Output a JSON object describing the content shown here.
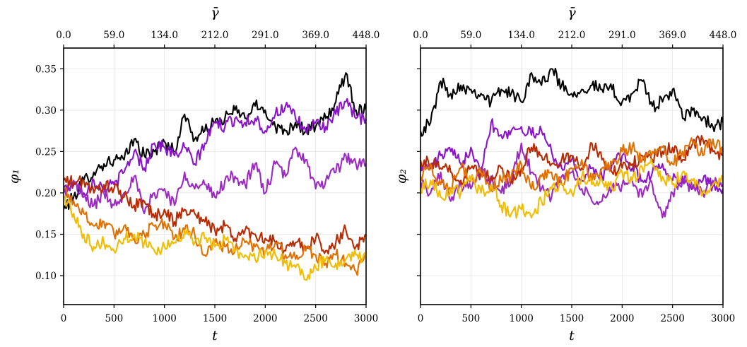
{
  "chart_data": [
    {
      "type": "line",
      "xlabel": "t",
      "ylabel": "φ₁",
      "top_xlabel": "γ̄",
      "xlim": [
        0,
        3000
      ],
      "ylim": [
        0.065,
        0.375
      ],
      "xticks": [
        0,
        500,
        1000,
        1500,
        2000,
        2500,
        3000
      ],
      "xtick_labels": [
        "0",
        "500",
        "1000",
        "1500",
        "2000",
        "2500",
        "3000"
      ],
      "yticks": [
        0.1,
        0.15,
        0.2,
        0.25,
        0.3,
        0.35
      ],
      "ytick_labels": [
        "0.10",
        "0.15",
        "0.20",
        "0.25",
        "0.30",
        "0.35"
      ],
      "top_xticks": [
        0,
        500,
        1000,
        1500,
        2000,
        2500,
        3000
      ],
      "top_xtick_labels": [
        "0.0",
        "59.0",
        "134.0",
        "212.0",
        "291.0",
        "369.0",
        "448.0"
      ],
      "grid": true,
      "x": [
        0,
        100,
        200,
        300,
        400,
        500,
        600,
        700,
        800,
        900,
        1000,
        1100,
        1200,
        1300,
        1400,
        1500,
        1600,
        1700,
        1800,
        1900,
        2000,
        2100,
        2200,
        2300,
        2400,
        2500,
        2600,
        2700,
        2800,
        2900,
        3000
      ],
      "series": [
        {
          "color": "#000000",
          "values": [
            0.18,
            0.195,
            0.215,
            0.225,
            0.235,
            0.24,
            0.24,
            0.265,
            0.245,
            0.25,
            0.262,
            0.25,
            0.295,
            0.265,
            0.275,
            0.285,
            0.29,
            0.3,
            0.29,
            0.305,
            0.3,
            0.28,
            0.275,
            0.285,
            0.275,
            0.28,
            0.29,
            0.31,
            0.345,
            0.3,
            0.3
          ]
        },
        {
          "color": "#8a14c8",
          "values": [
            0.205,
            0.21,
            0.2,
            0.215,
            0.205,
            0.21,
            0.225,
            0.25,
            0.23,
            0.26,
            0.255,
            0.245,
            0.255,
            0.235,
            0.26,
            0.285,
            0.28,
            0.29,
            0.285,
            0.29,
            0.275,
            0.295,
            0.305,
            0.29,
            0.275,
            0.285,
            0.28,
            0.295,
            0.31,
            0.29,
            0.29
          ]
        },
        {
          "color": "#9a2ac0",
          "values": [
            0.2,
            0.215,
            0.195,
            0.185,
            0.2,
            0.185,
            0.2,
            0.22,
            0.175,
            0.2,
            0.205,
            0.185,
            0.225,
            0.205,
            0.21,
            0.195,
            0.215,
            0.22,
            0.21,
            0.235,
            0.2,
            0.235,
            0.22,
            0.255,
            0.24,
            0.205,
            0.215,
            0.225,
            0.245,
            0.235,
            0.235
          ]
        },
        {
          "color": "#b82a00",
          "values": [
            0.215,
            0.212,
            0.215,
            0.2,
            0.21,
            0.205,
            0.195,
            0.185,
            0.19,
            0.17,
            0.18,
            0.165,
            0.18,
            0.175,
            0.165,
            0.155,
            0.16,
            0.145,
            0.155,
            0.15,
            0.145,
            0.14,
            0.13,
            0.14,
            0.135,
            0.145,
            0.13,
            0.14,
            0.155,
            0.135,
            0.15
          ]
        },
        {
          "color": "#e07000",
          "values": [
            0.205,
            0.19,
            0.175,
            0.16,
            0.165,
            0.15,
            0.16,
            0.145,
            0.15,
            0.16,
            0.165,
            0.145,
            0.155,
            0.15,
            0.125,
            0.14,
            0.135,
            0.13,
            0.14,
            0.135,
            0.13,
            0.14,
            0.125,
            0.12,
            0.13,
            0.125,
            0.115,
            0.125,
            0.115,
            0.105,
            0.125
          ]
        },
        {
          "color": "#f2bc00",
          "values": [
            0.195,
            0.175,
            0.15,
            0.135,
            0.14,
            0.13,
            0.145,
            0.15,
            0.14,
            0.13,
            0.135,
            0.14,
            0.155,
            0.14,
            0.145,
            0.135,
            0.145,
            0.13,
            0.125,
            0.12,
            0.13,
            0.125,
            0.115,
            0.11,
            0.095,
            0.11,
            0.12,
            0.115,
            0.12,
            0.125,
            0.12
          ]
        }
      ]
    },
    {
      "type": "line",
      "xlabel": "t",
      "ylabel": "φ₂",
      "top_xlabel": "γ̄",
      "xlim": [
        0,
        3000
      ],
      "ylim": [
        0.065,
        0.375
      ],
      "xticks": [
        0,
        500,
        1000,
        1500,
        2000,
        2500,
        3000
      ],
      "xtick_labels": [
        "0",
        "500",
        "1000",
        "1500",
        "2000",
        "2500",
        "3000"
      ],
      "yticks": [
        0.1,
        0.15,
        0.2,
        0.25,
        0.3,
        0.35
      ],
      "ytick_labels": [],
      "top_xticks": [
        0,
        500,
        1000,
        1500,
        2000,
        2500,
        3000
      ],
      "top_xtick_labels": [
        "0.0",
        "59.0",
        "134.0",
        "212.0",
        "291.0",
        "369.0",
        "448.0"
      ],
      "grid": true,
      "x": [
        0,
        100,
        200,
        300,
        400,
        500,
        600,
        700,
        800,
        900,
        1000,
        1100,
        1200,
        1300,
        1400,
        1500,
        1600,
        1700,
        1800,
        1900,
        2000,
        2100,
        2200,
        2300,
        2400,
        2500,
        2600,
        2700,
        2800,
        2900,
        3000
      ],
      "series": [
        {
          "color": "#000000",
          "values": [
            0.275,
            0.285,
            0.335,
            0.32,
            0.33,
            0.325,
            0.32,
            0.31,
            0.325,
            0.32,
            0.31,
            0.345,
            0.33,
            0.35,
            0.33,
            0.32,
            0.325,
            0.33,
            0.325,
            0.325,
            0.31,
            0.32,
            0.335,
            0.305,
            0.31,
            0.325,
            0.29,
            0.3,
            0.29,
            0.28,
            0.285
          ]
        },
        {
          "color": "#8a14c8",
          "values": [
            0.235,
            0.23,
            0.245,
            0.25,
            0.235,
            0.255,
            0.23,
            0.285,
            0.27,
            0.275,
            0.28,
            0.27,
            0.275,
            0.25,
            0.23,
            0.24,
            0.215,
            0.23,
            0.22,
            0.235,
            0.245,
            0.23,
            0.215,
            0.225,
            0.235,
            0.215,
            0.22,
            0.205,
            0.215,
            0.21,
            0.205
          ]
        },
        {
          "color": "#9a2ac0",
          "values": [
            0.215,
            0.2,
            0.225,
            0.19,
            0.21,
            0.205,
            0.225,
            0.215,
            0.2,
            0.215,
            0.26,
            0.225,
            0.205,
            0.195,
            0.22,
            0.225,
            0.205,
            0.19,
            0.19,
            0.205,
            0.21,
            0.215,
            0.195,
            0.21,
            0.17,
            0.2,
            0.215,
            0.205,
            0.2,
            0.215,
            0.21
          ]
        },
        {
          "color": "#b82a00",
          "values": [
            0.24,
            0.235,
            0.23,
            0.225,
            0.215,
            0.23,
            0.225,
            0.22,
            0.23,
            0.215,
            0.23,
            0.255,
            0.245,
            0.235,
            0.24,
            0.245,
            0.23,
            0.26,
            0.24,
            0.225,
            0.23,
            0.235,
            0.245,
            0.24,
            0.25,
            0.255,
            0.24,
            0.26,
            0.265,
            0.25,
            0.245
          ]
        },
        {
          "color": "#e07000",
          "values": [
            0.22,
            0.235,
            0.21,
            0.205,
            0.23,
            0.215,
            0.225,
            0.205,
            0.215,
            0.22,
            0.235,
            0.205,
            0.22,
            0.225,
            0.21,
            0.23,
            0.24,
            0.215,
            0.23,
            0.235,
            0.25,
            0.255,
            0.24,
            0.25,
            0.255,
            0.235,
            0.25,
            0.26,
            0.245,
            0.265,
            0.25
          ]
        },
        {
          "color": "#f2bc00",
          "values": [
            0.205,
            0.215,
            0.195,
            0.205,
            0.2,
            0.215,
            0.2,
            0.21,
            0.185,
            0.175,
            0.18,
            0.17,
            0.19,
            0.205,
            0.21,
            0.2,
            0.22,
            0.21,
            0.215,
            0.205,
            0.225,
            0.215,
            0.23,
            0.235,
            0.22,
            0.21,
            0.225,
            0.215,
            0.2,
            0.21,
            0.215
          ]
        }
      ]
    }
  ]
}
